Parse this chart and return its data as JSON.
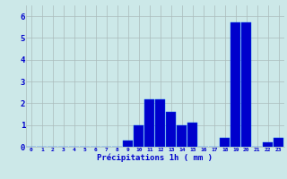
{
  "hours": [
    0,
    1,
    2,
    3,
    4,
    5,
    6,
    7,
    8,
    9,
    10,
    11,
    12,
    13,
    14,
    15,
    16,
    17,
    18,
    19,
    20,
    21,
    22,
    23
  ],
  "values": [
    0,
    0,
    0,
    0,
    0,
    0,
    0,
    0,
    0,
    0.3,
    1.0,
    2.2,
    2.2,
    1.6,
    1.0,
    1.1,
    0,
    0,
    0.4,
    5.7,
    5.7,
    0,
    0.2,
    0.4
  ],
  "bar_color": "#0000cc",
  "bar_edge_color": "#0055ee",
  "background_color": "#cce8e8",
  "grid_color": "#aabbbb",
  "xlabel": "Précipitations 1h ( mm )",
  "tick_color": "#0000cc",
  "ylim": [
    0,
    6.5
  ],
  "yticks": [
    0,
    1,
    2,
    3,
    4,
    5,
    6
  ]
}
